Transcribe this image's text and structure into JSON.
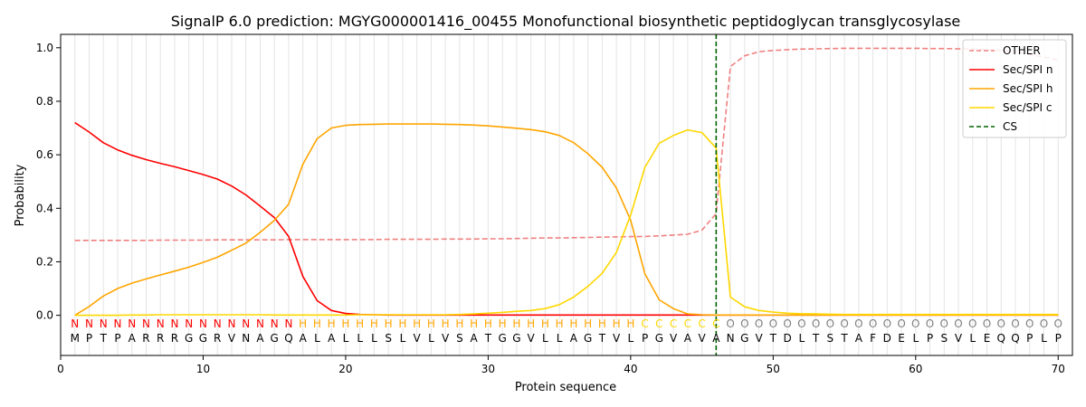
{
  "chart_data": {
    "type": "line",
    "title": "SignalP 6.0 prediction: MGYG000001416_00455 Monofunctional biosynthetic peptidoglycan transglycosylase",
    "xlabel": "Protein sequence",
    "ylabel": "Probability",
    "xlim": [
      0,
      71
    ],
    "ylim": [
      -0.15,
      1.05
    ],
    "xticks": [
      0,
      10,
      20,
      30,
      40,
      50,
      60,
      70
    ],
    "yticks": [
      0.0,
      0.2,
      0.4,
      0.6,
      0.8,
      1.0
    ],
    "ytick_labels": [
      "0.0",
      "0.2",
      "0.4",
      "0.6",
      "0.8",
      "1.0"
    ],
    "legend_position": "top-right",
    "grid": "vertical lines at each residue",
    "x": [
      1,
      2,
      3,
      4,
      5,
      6,
      7,
      8,
      9,
      10,
      11,
      12,
      13,
      14,
      15,
      16,
      17,
      18,
      19,
      20,
      21,
      22,
      23,
      24,
      25,
      26,
      27,
      28,
      29,
      30,
      31,
      32,
      33,
      34,
      35,
      36,
      37,
      38,
      39,
      40,
      41,
      42,
      43,
      44,
      45,
      46,
      47,
      48,
      49,
      50,
      51,
      52,
      53,
      54,
      55,
      56,
      57,
      58,
      59,
      60,
      61,
      62,
      63,
      64,
      65,
      66,
      67,
      68,
      69,
      70
    ],
    "series": [
      {
        "name": "OTHER",
        "color": "#f08080",
        "dash": true,
        "values": [
          0.28,
          0.28,
          0.28,
          0.28,
          0.28,
          0.28,
          0.281,
          0.281,
          0.281,
          0.281,
          0.282,
          0.282,
          0.282,
          0.282,
          0.282,
          0.283,
          0.283,
          0.283,
          0.283,
          0.283,
          0.283,
          0.283,
          0.284,
          0.284,
          0.284,
          0.284,
          0.285,
          0.285,
          0.285,
          0.286,
          0.286,
          0.287,
          0.288,
          0.289,
          0.289,
          0.29,
          0.291,
          0.292,
          0.293,
          0.294,
          0.295,
          0.297,
          0.3,
          0.303,
          0.318,
          0.38,
          0.93,
          0.97,
          0.985,
          0.99,
          0.993,
          0.995,
          0.996,
          0.997,
          0.998,
          0.998,
          0.998,
          0.998,
          0.998,
          0.998,
          0.997,
          0.997,
          0.996,
          0.995,
          0.993,
          0.99,
          0.985,
          0.975,
          0.965,
          0.955
        ]
      },
      {
        "name": "Sec/SPI n",
        "color": "#ff0000",
        "dash": false,
        "values": [
          0.72,
          0.685,
          0.645,
          0.618,
          0.598,
          0.582,
          0.568,
          0.555,
          0.541,
          0.526,
          0.509,
          0.483,
          0.45,
          0.408,
          0.365,
          0.295,
          0.145,
          0.055,
          0.018,
          0.007,
          0.003,
          0.002,
          0.001,
          0.001,
          0.001,
          0.001,
          0.001,
          0.001,
          0.001,
          0.001,
          0.001,
          0.001,
          0.001,
          0.001,
          0.001,
          0.001,
          0.001,
          0.001,
          0.001,
          0.001,
          0.001,
          0.001,
          0.001,
          0.001,
          0.001,
          0.001,
          0.001,
          0.001,
          0.001,
          0.001,
          0.001,
          0.001,
          0.001,
          0.001,
          0.001,
          0.001,
          0.001,
          0.001,
          0.001,
          0.001,
          0.001,
          0.001,
          0.001,
          0.001,
          0.001,
          0.001,
          0.001,
          0.001,
          0.001,
          0.001
        ]
      },
      {
        "name": "Sec/SPI h",
        "color": "#ffa500",
        "dash": false,
        "values": [
          0.0,
          0.033,
          0.072,
          0.1,
          0.12,
          0.136,
          0.151,
          0.165,
          0.18,
          0.198,
          0.217,
          0.243,
          0.27,
          0.31,
          0.355,
          0.415,
          0.565,
          0.66,
          0.7,
          0.71,
          0.713,
          0.714,
          0.715,
          0.715,
          0.715,
          0.715,
          0.714,
          0.713,
          0.711,
          0.708,
          0.704,
          0.699,
          0.694,
          0.686,
          0.672,
          0.645,
          0.604,
          0.553,
          0.476,
          0.355,
          0.155,
          0.058,
          0.025,
          0.005,
          0.002,
          0.001,
          0.001,
          0.001,
          0.001,
          0.001,
          0.001,
          0.001,
          0.001,
          0.001,
          0.001,
          0.001,
          0.001,
          0.001,
          0.001,
          0.001,
          0.001,
          0.001,
          0.001,
          0.001,
          0.001,
          0.001,
          0.001,
          0.001,
          0.001,
          0.001
        ]
      },
      {
        "name": "Sec/SPI c",
        "color": "#ffd700",
        "dash": false,
        "values": [
          0.0,
          0.0,
          0.0,
          0.0,
          0.001,
          0.001,
          0.002,
          0.002,
          0.002,
          0.002,
          0.002,
          0.002,
          0.002,
          0.002,
          0.001,
          0.001,
          0.001,
          0.001,
          0.001,
          0.001,
          0.002,
          0.002,
          0.002,
          0.002,
          0.002,
          0.002,
          0.002,
          0.003,
          0.005,
          0.008,
          0.011,
          0.015,
          0.018,
          0.025,
          0.04,
          0.068,
          0.108,
          0.157,
          0.235,
          0.375,
          0.553,
          0.643,
          0.672,
          0.693,
          0.683,
          0.625,
          0.068,
          0.032,
          0.018,
          0.012,
          0.008,
          0.006,
          0.005,
          0.004,
          0.003,
          0.003,
          0.003,
          0.003,
          0.003,
          0.003,
          0.003,
          0.003,
          0.003,
          0.003,
          0.003,
          0.003,
          0.003,
          0.003,
          0.003,
          0.003
        ]
      }
    ],
    "cs_line": {
      "name": "CS",
      "x": 46,
      "color": "#006400"
    },
    "sequence": [
      "M",
      "P",
      "T",
      "P",
      "A",
      "R",
      "R",
      "R",
      "G",
      "G",
      "R",
      "V",
      "N",
      "A",
      "G",
      "Q",
      "A",
      "L",
      "A",
      "L",
      "L",
      "L",
      "S",
      "L",
      "V",
      "L",
      "V",
      "S",
      "A",
      "T",
      "G",
      "G",
      "V",
      "L",
      "L",
      "A",
      "G",
      "T",
      "V",
      "L",
      "P",
      "G",
      "V",
      "A",
      "V",
      "A",
      "N",
      "G",
      "V",
      "T",
      "D",
      "L",
      "T",
      "S",
      "T",
      "A",
      "F",
      "D",
      "E",
      "L",
      "P",
      "S",
      "V",
      "L",
      "E",
      "Q",
      "Q",
      "P",
      "L",
      "P"
    ],
    "labels": [
      "N",
      "N",
      "N",
      "N",
      "N",
      "N",
      "N",
      "N",
      "N",
      "N",
      "N",
      "N",
      "N",
      "N",
      "N",
      "N",
      "H",
      "H",
      "H",
      "H",
      "H",
      "H",
      "H",
      "H",
      "H",
      "H",
      "H",
      "H",
      "H",
      "H",
      "H",
      "H",
      "H",
      "H",
      "H",
      "H",
      "H",
      "H",
      "H",
      "H",
      "C",
      "C",
      "C",
      "C",
      "C",
      "C",
      "O",
      "O",
      "O",
      "O",
      "O",
      "O",
      "O",
      "O",
      "O",
      "O",
      "O",
      "O",
      "O",
      "O",
      "O",
      "O",
      "O",
      "O",
      "O",
      "O",
      "O",
      "O",
      "O",
      "O"
    ],
    "label_colors": {
      "N": "#ff0000",
      "H": "#ffa500",
      "C": "#ffd700",
      "O": "#808080"
    }
  }
}
